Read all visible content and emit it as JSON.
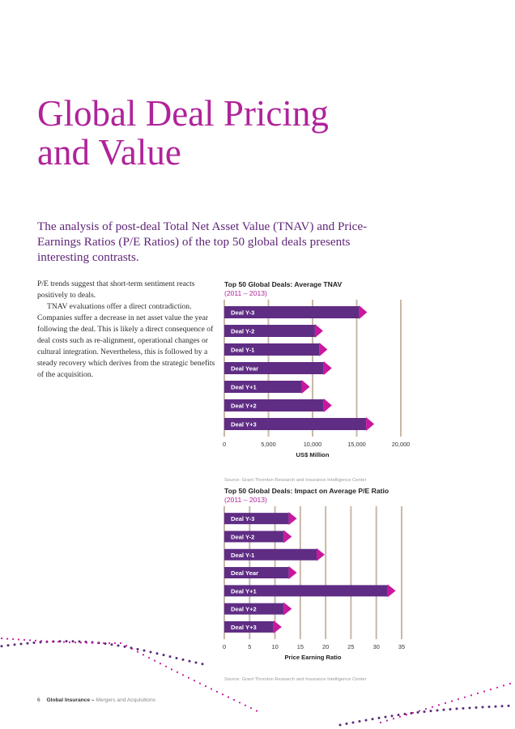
{
  "page": {
    "title_line1": "Global Deal Pricing",
    "title_line2": "and Value",
    "lede": "The analysis of post-deal Total Net Asset Value (TNAV) and Price-Earnings Ratios (P/E Ratios) of the top 50 global deals presents interesting contrasts.",
    "body_p1": "P/E trends suggest that short-term sentiment reacts positively to deals.",
    "body_p2": "TNAV evaluations offer a direct contradiction. Companies suffer a decrease in net asset value the year following the deal. This is likely a direct consequence of deal costs such as re-alignment, operational changes or cultural integration. Nevertheless, this is followed by a steady recovery which derives from the strategic benefits of the acquisition."
  },
  "footer": {
    "page_number": "6",
    "publication": "Global Insurance",
    "separator": " – ",
    "section": "Mergers and Acquisitions"
  },
  "colors": {
    "title": "#b0239a",
    "lede": "#5f2578",
    "bar": "#5f2d84",
    "arrow": "#c8189e",
    "grid": "#c8b8a8"
  },
  "chart_data": [
    {
      "type": "bar",
      "orientation": "horizontal",
      "title": "Top 50 Global Deals: Average TNAV",
      "subtitle": "(2011 – 2013)",
      "categories": [
        "Deal Y-3",
        "Deal Y-2",
        "Deal Y-1",
        "Deal Year",
        "Deal Y+1",
        "Deal Y+2",
        "Deal Y+3"
      ],
      "values": [
        16000,
        11000,
        11500,
        12000,
        9500,
        12000,
        16800
      ],
      "xlabel": "US$ Million",
      "xlim": [
        0,
        20000
      ],
      "xticks": [
        "0",
        "5,000",
        "10,000",
        "15,000",
        "20,000"
      ],
      "grid": true,
      "source": "Source: Grant Thornton Research and Insurance Intelligence Center"
    },
    {
      "type": "bar",
      "orientation": "horizontal",
      "title": "Top 50 Global Deals: Impact on Average P/E Ratio",
      "subtitle": "(2011 – 2013)",
      "categories": [
        "Deal Y-3",
        "Deal Y-2",
        "Deal Y-1",
        "Deal Year",
        "Deal Y+1",
        "Deal Y+2",
        "Deal Y+3"
      ],
      "values": [
        14,
        13,
        19.5,
        14,
        33.5,
        13,
        11
      ],
      "xlabel": "Price Earning Ratio",
      "xlim": [
        0,
        35
      ],
      "xticks": [
        "0",
        "5",
        "10",
        "15",
        "20",
        "25",
        "30",
        "35"
      ],
      "grid": true,
      "source": "Source: Grant Thornton Research and Insurance Intelligence Center"
    }
  ]
}
